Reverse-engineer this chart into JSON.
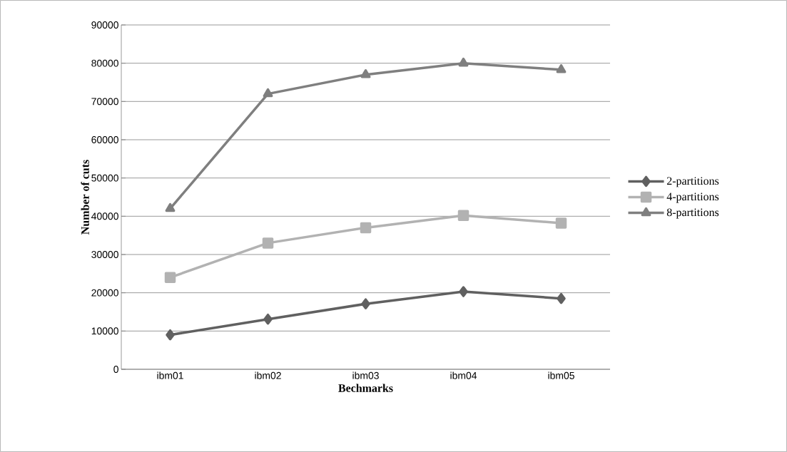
{
  "chart_data": {
    "type": "line",
    "xlabel": "Bechmarks",
    "ylabel": "Number of cuts",
    "categories": [
      "ibm01",
      "ibm02",
      "ibm03",
      "ibm04",
      "ibm05"
    ],
    "series": [
      {
        "name": "2-partitions",
        "color": "#606060",
        "marker": "diamond",
        "values": [
          9000,
          13100,
          17100,
          20300,
          18500
        ]
      },
      {
        "name": "4-partitions",
        "color": "#b2b2b2",
        "marker": "square",
        "values": [
          24000,
          33000,
          37000,
          40200,
          38200
        ]
      },
      {
        "name": "8-partitions",
        "color": "#7f7f7f",
        "marker": "triangle",
        "values": [
          42000,
          72000,
          77000,
          80000,
          78300
        ]
      }
    ],
    "ylim": [
      0,
      90000
    ],
    "yticks": [
      0,
      10000,
      20000,
      30000,
      40000,
      50000,
      60000,
      70000,
      80000,
      90000
    ],
    "grid": "y",
    "legend": "right",
    "line_style": "solid"
  }
}
